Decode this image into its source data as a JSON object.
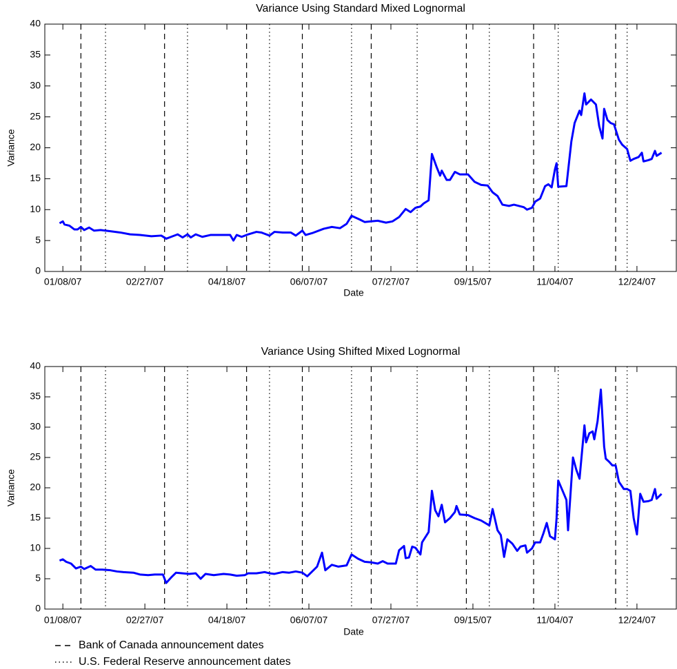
{
  "chart_data": [
    {
      "type": "line",
      "title": "Variance Using Standard Mixed Lognormal",
      "xlabel": "Date",
      "ylabel": "Variance",
      "xlim": [
        "12/28/06",
        "01/17/08"
      ],
      "xticks": [
        "01/08/07",
        "02/27/07",
        "04/18/07",
        "06/07/07",
        "07/27/07",
        "09/15/07",
        "11/04/07",
        "12/24/07"
      ],
      "ylim": [
        0,
        40
      ],
      "yticks": [
        0,
        5,
        10,
        15,
        20,
        25,
        30,
        35,
        40
      ],
      "color": "#0000ff",
      "x": [
        "01/06/07",
        "01/08/07",
        "01/09/07",
        "01/12/07",
        "01/15/07",
        "01/17/07",
        "01/19/07",
        "01/21/07",
        "01/24/07",
        "01/27/07",
        "01/31/07",
        "02/06/07",
        "02/12/07",
        "02/18/07",
        "02/24/07",
        "03/03/07",
        "03/09/07",
        "03/12/07",
        "03/15/07",
        "03/19/07",
        "03/22/07",
        "03/25/07",
        "03/27/07",
        "03/30/07",
        "04/03/07",
        "04/08/07",
        "04/12/07",
        "04/16/07",
        "04/20/07",
        "04/22/07",
        "04/24/07",
        "04/27/07",
        "05/01/07",
        "05/06/07",
        "05/09/07",
        "05/14/07",
        "05/17/07",
        "05/22/07",
        "05/27/07",
        "05/30/07",
        "06/03/07",
        "06/05/07",
        "06/09/07",
        "06/16/07",
        "06/21/07",
        "06/26/07",
        "06/30/07",
        "07/03/07",
        "07/08/07",
        "07/11/07",
        "07/15/07",
        "07/19/07",
        "07/24/07",
        "07/28/07",
        "08/01/07",
        "08/05/07",
        "08/08/07",
        "08/11/07",
        "08/14/07",
        "08/16/07",
        "08/19/07",
        "08/21/07",
        "08/24/07",
        "08/26/07",
        "08/27/07",
        "08/30/07",
        "09/01/07",
        "09/04/07",
        "09/07/07",
        "09/12/07",
        "09/16/07",
        "09/20/07",
        "09/24/07",
        "09/27/07",
        "09/30/07",
        "10/03/07",
        "10/07/07",
        "10/10/07",
        "10/16/07",
        "10/18/07",
        "10/21/07",
        "10/23/07",
        "10/26/07",
        "10/29/07",
        "10/31/07",
        "11/02/07",
        "11/04/07",
        "11/05/07",
        "11/06/07",
        "11/11/07",
        "11/14/07",
        "11/16/07",
        "11/19/07",
        "11/20/07",
        "11/22/07",
        "11/23/07",
        "11/26/07",
        "11/29/07",
        "12/01/07",
        "12/03/07",
        "12/04/07",
        "12/06/07",
        "12/08/07",
        "12/10/07",
        "12/13/07",
        "12/15/07",
        "12/18/07",
        "12/20/07",
        "12/22/07",
        "12/25/07",
        "12/27/07",
        "12/28/07",
        "12/31/07",
        "01/02/08",
        "01/04/08",
        "01/05/08",
        "01/08/08"
      ],
      "values": [
        7.8,
        8.1,
        7.6,
        7.4,
        6.8,
        6.8,
        7.2,
        6.7,
        7.1,
        6.6,
        6.7,
        6.5,
        6.3,
        6.0,
        5.9,
        5.7,
        5.8,
        5.3,
        5.6,
        6.0,
        5.5,
        6.0,
        5.5,
        6.0,
        5.6,
        5.9,
        5.9,
        5.9,
        5.9,
        5.0,
        5.9,
        5.6,
        6.0,
        6.4,
        6.3,
        5.8,
        6.4,
        6.3,
        6.3,
        5.8,
        6.6,
        5.9,
        6.2,
        6.9,
        7.2,
        7.0,
        7.7,
        9.0,
        8.4,
        8.0,
        8.1,
        8.2,
        7.9,
        8.1,
        8.8,
        10.1,
        9.6,
        10.3,
        10.5,
        11.0,
        11.5,
        19.0,
        16.8,
        15.5,
        16.3,
        14.8,
        14.8,
        16.1,
        15.7,
        15.7,
        14.5,
        14.0,
        13.9,
        12.8,
        12.2,
        10.8,
        10.6,
        10.8,
        10.4,
        10.0,
        10.3,
        11.3,
        11.8,
        13.8,
        14.1,
        13.6,
        16.5,
        17.5,
        13.7,
        13.8,
        21.0,
        24.0,
        26.0,
        25.3,
        28.8,
        27.0,
        27.8,
        27.0,
        23.5,
        21.5,
        26.3,
        24.5,
        24.0,
        23.8,
        21.3,
        20.5,
        19.8,
        17.9,
        18.2,
        18.5,
        19.2,
        17.8,
        18.0,
        18.2,
        19.5,
        18.7,
        19.2
      ]
    },
    {
      "type": "line",
      "title": "Variance Using Shifted Mixed Lognormal",
      "xlabel": "Date",
      "ylabel": "Variance",
      "xlim": [
        "12/28/06",
        "01/17/08"
      ],
      "xticks": [
        "01/08/07",
        "02/27/07",
        "04/18/07",
        "06/07/07",
        "07/27/07",
        "09/15/07",
        "11/04/07",
        "12/24/07"
      ],
      "ylim": [
        0,
        40
      ],
      "yticks": [
        0,
        5,
        10,
        15,
        20,
        25,
        30,
        35,
        40
      ],
      "color": "#0000ff",
      "x": [
        "01/06/07",
        "01/08/07",
        "01/10/07",
        "01/13/07",
        "01/16/07",
        "01/19/07",
        "01/21/07",
        "01/25/07",
        "01/28/07",
        "02/01/07",
        "02/06/07",
        "02/10/07",
        "02/14/07",
        "02/20/07",
        "02/24/07",
        "03/01/07",
        "03/05/07",
        "03/10/07",
        "03/12/07",
        "03/15/07",
        "03/18/07",
        "03/22/07",
        "03/26/07",
        "03/30/07",
        "04/02/07",
        "04/05/07",
        "04/10/07",
        "04/16/07",
        "04/20/07",
        "04/24/07",
        "04/29/07",
        "05/01/07",
        "05/06/07",
        "05/11/07",
        "05/14/07",
        "05/17/07",
        "05/22/07",
        "05/26/07",
        "05/30/07",
        "06/03/07",
        "06/06/07",
        "06/09/07",
        "06/12/07",
        "06/15/07",
        "06/17/07",
        "06/21/07",
        "06/25/07",
        "06/30/07",
        "07/03/07",
        "07/07/07",
        "07/11/07",
        "07/15/07",
        "07/19/07",
        "07/22/07",
        "07/25/07",
        "07/30/07",
        "08/01/07",
        "08/04/07",
        "08/05/07",
        "08/07/07",
        "08/09/07",
        "08/11/07",
        "08/14/07",
        "08/15/07",
        "08/19/07",
        "08/21/07",
        "08/23/07",
        "08/25/07",
        "08/27/07",
        "08/29/07",
        "09/01/07",
        "09/04/07",
        "09/05/07",
        "09/07/07",
        "09/12/07",
        "09/16/07",
        "09/20/07",
        "09/25/07",
        "09/27/07",
        "09/30/07",
        "10/02/07",
        "10/04/07",
        "10/06/07",
        "10/09/07",
        "10/12/07",
        "10/14/07",
        "10/17/07",
        "10/18/07",
        "10/21/07",
        "10/23/07",
        "10/26/07",
        "10/28/07",
        "10/30/07",
        "11/01/07",
        "11/04/07",
        "11/05/07",
        "11/06/07",
        "11/09/07",
        "11/11/07",
        "11/12/07",
        "11/15/07",
        "11/17/07",
        "11/19/07",
        "11/22/07",
        "11/23/07",
        "11/25/07",
        "11/27/07",
        "11/28/07",
        "11/30/07",
        "12/02/07",
        "12/04/07",
        "12/05/07",
        "12/07/07",
        "12/09/07",
        "12/11/07",
        "12/13/07",
        "12/16/07",
        "12/18/07",
        "12/20/07",
        "12/22/07",
        "12/24/07",
        "12/26/07",
        "12/28/07",
        "12/31/07",
        "01/02/08",
        "01/04/08",
        "01/05/08",
        "01/08/08"
      ],
      "values": [
        8.0,
        8.2,
        7.8,
        7.5,
        6.7,
        7.0,
        6.6,
        7.1,
        6.5,
        6.5,
        6.4,
        6.2,
        6.1,
        6.0,
        5.7,
        5.6,
        5.7,
        5.7,
        4.3,
        5.2,
        6.0,
        5.9,
        5.8,
        5.9,
        5.0,
        5.8,
        5.6,
        5.8,
        5.7,
        5.5,
        5.6,
        5.9,
        5.9,
        6.1,
        5.9,
        5.8,
        6.1,
        6.0,
        6.2,
        6.0,
        5.4,
        6.2,
        7.0,
        9.3,
        6.4,
        7.3,
        7.0,
        7.2,
        9.0,
        8.3,
        7.8,
        7.7,
        7.5,
        7.9,
        7.5,
        7.5,
        9.7,
        10.4,
        8.4,
        8.5,
        10.3,
        10.1,
        9.0,
        11.0,
        12.7,
        19.5,
        16.3,
        15.3,
        17.2,
        14.3,
        15.0,
        16.0,
        17.0,
        15.6,
        15.5,
        15.0,
        14.6,
        13.8,
        16.5,
        13.0,
        12.2,
        8.6,
        11.5,
        10.8,
        9.6,
        10.3,
        10.5,
        9.3,
        10.0,
        11.0,
        11.0,
        12.5,
        14.2,
        12.0,
        11.5,
        15.0,
        21.2,
        19.3,
        18.0,
        13.0,
        25.0,
        23.0,
        21.5,
        30.3,
        27.5,
        29.0,
        29.3,
        28.0,
        31.0,
        36.2,
        26.8,
        24.8,
        24.3,
        23.7,
        23.7,
        21.0,
        19.8,
        19.8,
        19.5,
        15.0,
        12.3,
        19.0,
        17.7,
        17.8,
        18.0,
        19.8,
        18.2,
        19.0
      ]
    }
  ],
  "announcements": [
    {
      "name": "Bank of Canada announcement dates",
      "style": "dashed",
      "dates": [
        "01/19/07",
        "03/11/07",
        "04/30/07",
        "06/03/07",
        "07/15/07",
        "09/11/07",
        "10/22/07",
        "12/11/07"
      ]
    },
    {
      "name": "U.S. Federal Reserve announcement dates",
      "style": "dotted",
      "dates": [
        "02/03/07",
        "03/25/07",
        "05/14/07",
        "07/03/07",
        "08/12/07",
        "09/25/07",
        "11/06/07",
        "12/18/07"
      ]
    }
  ]
}
